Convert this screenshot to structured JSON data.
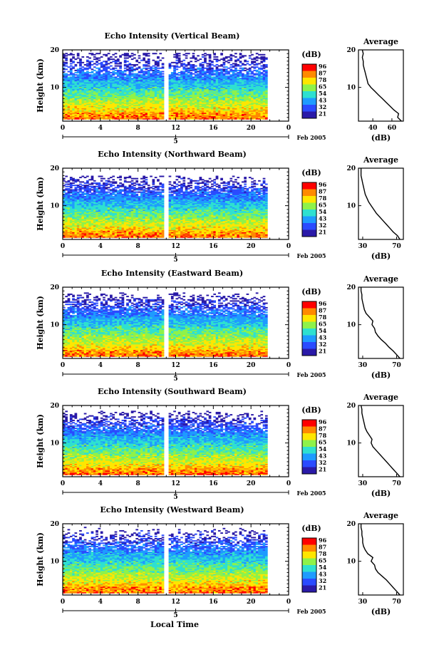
{
  "figure": {
    "xlabel_bottom": "Local Time",
    "date_label": "Feb 2005",
    "day_label": "5"
  },
  "colorbar": {
    "unit": "(dB)",
    "levels": [
      "96",
      "87",
      "78",
      "65",
      "54",
      "43",
      "32",
      "21"
    ],
    "colors": [
      "#ff0000",
      "#ff8a00",
      "#ffe600",
      "#8ef24a",
      "#2ee0d0",
      "#1e9bff",
      "#2a4bff",
      "#2a1aa8"
    ]
  },
  "chart_data": [
    {
      "type": "heatmap",
      "title": "Echo Intensity (Vertical Beam)",
      "ylabel": "Height (km)",
      "xlabel": "",
      "x_ticks": [
        "0",
        "4",
        "8",
        "12",
        "16",
        "20",
        "0"
      ],
      "y_ticks": [
        "20",
        "10"
      ],
      "xlim": [
        0,
        24
      ],
      "ylim": [
        1,
        20
      ],
      "data_xrange": [
        0,
        21.7
      ],
      "gap_x": [
        10.8,
        11.1
      ],
      "top_km": 19.0,
      "profile": {
        "title": "Average",
        "xlabel": "(dB)",
        "x_ticks": [
          "40",
          "60"
        ],
        "y_ticks": [
          "20",
          "10"
        ],
        "xlim": [
          25,
          72
        ],
        "heights": [
          1,
          2,
          3,
          4,
          5,
          6,
          7,
          8,
          9,
          10,
          11,
          12,
          13,
          14,
          15,
          16,
          17,
          18,
          19,
          20
        ],
        "values": [
          70,
          66,
          67,
          62,
          58,
          54,
          50,
          46,
          42,
          38,
          35,
          34,
          33,
          32,
          31,
          30,
          30,
          29,
          30,
          29
        ]
      }
    },
    {
      "type": "heatmap",
      "title": "Echo Intensity (Northward Beam)",
      "ylabel": "Height (km)",
      "xlabel": "",
      "x_ticks": [
        "0",
        "4",
        "8",
        "12",
        "16",
        "20",
        "0"
      ],
      "y_ticks": [
        "20",
        "10"
      ],
      "xlim": [
        0,
        24
      ],
      "ylim": [
        1,
        20
      ],
      "data_xrange": [
        0,
        21.7
      ],
      "gap_x": [
        10.8,
        11.1
      ],
      "top_km": 18.0,
      "profile": {
        "title": "Average",
        "xlabel": "(dB)",
        "x_ticks": [
          "30",
          "70"
        ],
        "y_ticks": [
          "20",
          "10"
        ],
        "xlim": [
          25,
          78
        ],
        "heights": [
          1,
          2,
          3,
          4,
          5,
          6,
          7,
          8,
          9,
          10,
          11,
          12,
          13,
          14,
          15,
          16,
          17,
          18,
          19,
          20
        ],
        "values": [
          74,
          71,
          66,
          62,
          58,
          54,
          50,
          46,
          43,
          40,
          37,
          35,
          33,
          32,
          31,
          30,
          29,
          28,
          28,
          28
        ]
      }
    },
    {
      "type": "heatmap",
      "title": "Echo Intensity (Eastward Beam)",
      "ylabel": "Height (km)",
      "xlabel": "",
      "x_ticks": [
        "0",
        "4",
        "8",
        "12",
        "16",
        "20",
        "0"
      ],
      "y_ticks": [
        "20",
        "10"
      ],
      "xlim": [
        0,
        24
      ],
      "ylim": [
        1,
        20
      ],
      "data_xrange": [
        0,
        21.7
      ],
      "gap_x": [
        10.8,
        11.1
      ],
      "top_km": 18.5,
      "profile": {
        "title": "Average",
        "xlabel": "(dB)",
        "x_ticks": [
          "30",
          "70"
        ],
        "y_ticks": [
          "20",
          "10"
        ],
        "xlim": [
          25,
          78
        ],
        "heights": [
          1,
          2,
          3,
          4,
          5,
          6,
          7,
          8,
          9,
          10,
          11,
          12,
          13,
          14,
          15,
          16,
          17,
          18,
          19,
          20
        ],
        "values": [
          74,
          70,
          66,
          61,
          57,
          52,
          48,
          45,
          44,
          41,
          42,
          38,
          34,
          32,
          31,
          30,
          29,
          29,
          28,
          28
        ]
      }
    },
    {
      "type": "heatmap",
      "title": "Echo Intensity (Southward Beam)",
      "ylabel": "Height (km)",
      "xlabel": "",
      "x_ticks": [
        "0",
        "4",
        "8",
        "12",
        "16",
        "20",
        "0"
      ],
      "y_ticks": [
        "20",
        "10"
      ],
      "xlim": [
        0,
        24
      ],
      "ylim": [
        1,
        20
      ],
      "data_xrange": [
        0,
        21.7
      ],
      "gap_x": [
        10.8,
        11.1
      ],
      "top_km": 18.5,
      "profile": {
        "title": "Average",
        "xlabel": "(dB)",
        "x_ticks": [
          "30",
          "70"
        ],
        "y_ticks": [
          "20",
          "10"
        ],
        "xlim": [
          25,
          78
        ],
        "heights": [
          1,
          2,
          3,
          4,
          5,
          6,
          7,
          8,
          9,
          10,
          11,
          12,
          13,
          14,
          15,
          16,
          17,
          18,
          19,
          20
        ],
        "values": [
          74,
          70,
          66,
          62,
          58,
          54,
          50,
          46,
          42,
          40,
          41,
          38,
          35,
          33,
          32,
          31,
          30,
          29,
          29,
          28
        ]
      }
    },
    {
      "type": "heatmap",
      "title": "Echo Intensity (Westward Beam)",
      "ylabel": "Height (km)",
      "xlabel": "",
      "x_ticks": [
        "0",
        "4",
        "8",
        "12",
        "16",
        "20",
        "0"
      ],
      "y_ticks": [
        "20",
        "10"
      ],
      "xlim": [
        0,
        24
      ],
      "ylim": [
        1,
        20
      ],
      "data_xrange": [
        0,
        21.7
      ],
      "gap_x": [
        10.8,
        11.1
      ],
      "top_km": 19.0,
      "profile": {
        "title": "Average",
        "xlabel": "(dB)",
        "x_ticks": [
          "30",
          "70"
        ],
        "y_ticks": [
          "20",
          "10"
        ],
        "xlim": [
          25,
          78
        ],
        "heights": [
          1,
          2,
          3,
          4,
          5,
          6,
          7,
          8,
          9,
          10,
          11,
          12,
          13,
          14,
          15,
          16,
          17,
          18,
          19,
          20
        ],
        "values": [
          74,
          70,
          66,
          62,
          58,
          53,
          48,
          45,
          44,
          40,
          42,
          36,
          33,
          31,
          30,
          30,
          29,
          29,
          28,
          28
        ]
      }
    }
  ]
}
